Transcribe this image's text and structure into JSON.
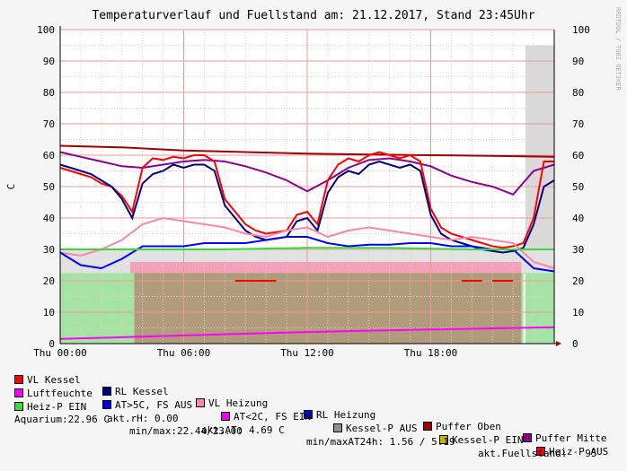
{
  "chart_data": {
    "type": "line",
    "title": "Temperaturverlauf und Fuellstand am: 21.12.2017, Stand 23:45Uhr",
    "ylabel": "C",
    "ylim": [
      0,
      100
    ],
    "y_ticks": [
      0,
      10,
      20,
      30,
      40,
      50,
      60,
      70,
      80,
      90,
      100
    ],
    "x_range_hours": [
      0,
      24
    ],
    "x_ticks": [
      {
        "h": 0,
        "label": "Thu 00:00"
      },
      {
        "h": 6,
        "label": "Thu 06:00"
      },
      {
        "h": 12,
        "label": "Thu 12:00"
      },
      {
        "h": 18,
        "label": "Thu 18:00"
      }
    ],
    "watermark": "RRDTOOL / TOBI OETIKER",
    "colors": {
      "vl_kessel": "#ff0000",
      "rl_kessel": "#000080",
      "vl_heizung": "#f788a8",
      "rl_heizung": "#0000ff",
      "puffer_oben": "#a00000",
      "puffer_mitte": "#8b008b",
      "luftfeuchte": "#ff00ff",
      "at_gt5": "#0000ff",
      "at_lt2": "#ee00ee",
      "kessel_p_aus": "#8e8e8e",
      "kessel_p_ein": "#c8b400",
      "heiz_p_aus": "#ff0000",
      "heiz_p_ein": "#33dd33",
      "fuellstand_area": "#d9d9d9",
      "heizp_area": "#a4e3a4",
      "kesselp_area": "#b09c7a"
    },
    "series": [
      {
        "name": "Puffer Oben",
        "key": "puffer_oben",
        "x": [
          0,
          3,
          6,
          9,
          12,
          15,
          18,
          21,
          24
        ],
        "values": [
          63,
          62.5,
          61.5,
          61,
          60.5,
          60.2,
          60,
          59.8,
          59.5
        ]
      },
      {
        "name": "Puffer Mitte",
        "key": "puffer_mitte",
        "x": [
          0,
          1,
          2,
          3,
          4,
          5,
          6,
          7,
          8,
          9,
          10,
          11,
          12,
          13,
          14,
          15,
          16,
          17,
          18,
          19,
          20,
          21,
          22,
          23,
          24
        ],
        "values": [
          61,
          59.5,
          58,
          56.5,
          56,
          57,
          58,
          58.5,
          58,
          56.5,
          54.5,
          52,
          48.5,
          52,
          56,
          58.5,
          59,
          58,
          56.5,
          53.5,
          51.5,
          50,
          47.5,
          55,
          57
        ]
      },
      {
        "name": "VL Kessel",
        "key": "vl_kessel",
        "x": [
          0,
          0.5,
          1,
          1.5,
          2,
          2.5,
          3,
          3.5,
          4,
          4.5,
          5,
          5.5,
          6,
          6.5,
          7,
          7.5,
          8,
          8.5,
          9,
          9.5,
          10,
          10.5,
          11,
          11.5,
          12,
          12.5,
          13,
          13.5,
          14,
          14.5,
          15,
          15.5,
          16,
          16.5,
          17,
          17.5,
          18,
          18.5,
          19,
          19.5,
          20,
          20.5,
          21,
          21.5,
          22,
          22.5,
          23,
          23.5,
          24
        ],
        "values": [
          56,
          55,
          54,
          53,
          51,
          50,
          47,
          42,
          56,
          59,
          58.5,
          59.5,
          59,
          60,
          60,
          58,
          46,
          42,
          38,
          36,
          35,
          35.5,
          36,
          41,
          42,
          38,
          52,
          57,
          59,
          58,
          60,
          61,
          60,
          59,
          60,
          58,
          43,
          37,
          35,
          34,
          33,
          32,
          31,
          30.5,
          31,
          32,
          40,
          58,
          58
        ]
      },
      {
        "name": "RL Kessel",
        "key": "rl_kessel",
        "x": [
          0,
          0.5,
          1,
          1.5,
          2,
          2.5,
          3,
          3.5,
          4,
          4.5,
          5,
          5.5,
          6,
          6.5,
          7,
          7.5,
          8,
          8.5,
          9,
          9.5,
          10,
          10.5,
          11,
          11.5,
          12,
          12.5,
          13,
          13.5,
          14,
          14.5,
          15,
          15.5,
          16,
          16.5,
          17,
          17.5,
          18,
          18.5,
          19,
          19.5,
          20,
          20.5,
          21,
          21.5,
          22,
          22.5,
          23,
          23.5,
          24
        ],
        "values": [
          57,
          56,
          55,
          54,
          52,
          50,
          46,
          40,
          51,
          54,
          55,
          57,
          56,
          57,
          57,
          55,
          44,
          40,
          36,
          34,
          33,
          33.5,
          34,
          39,
          40,
          36,
          48,
          53,
          55,
          54,
          57,
          58,
          57,
          56,
          57,
          55,
          41,
          35,
          33,
          32,
          31,
          30,
          29.5,
          29,
          29.5,
          30.5,
          38,
          50,
          52
        ]
      },
      {
        "name": "VL Heizung",
        "key": "vl_heizung",
        "x": [
          0,
          1,
          2,
          3,
          4,
          5,
          6,
          7,
          8,
          9,
          10,
          11,
          12,
          13,
          14,
          15,
          16,
          17,
          18,
          19,
          20,
          21,
          22,
          23,
          24
        ],
        "values": [
          29,
          28,
          30,
          33,
          38,
          40,
          39,
          38,
          37,
          35,
          34,
          36,
          37,
          34,
          36,
          37,
          36,
          35,
          34,
          33,
          34,
          33,
          32,
          26,
          24
        ]
      },
      {
        "name": "RL Heizung",
        "key": "rl_heizung",
        "x": [
          0,
          1,
          2,
          3,
          4,
          5,
          6,
          7,
          8,
          9,
          10,
          11,
          12,
          13,
          14,
          15,
          16,
          17,
          18,
          19,
          20,
          21,
          22,
          23,
          24
        ],
        "values": [
          29,
          25,
          24,
          27,
          31,
          31,
          31,
          32,
          32,
          32,
          33,
          34,
          34,
          32,
          31,
          31.5,
          31.5,
          32,
          32,
          31,
          31,
          30,
          30,
          24,
          23
        ]
      },
      {
        "name": "Heiz-P EIN",
        "key": "heiz_p_ein",
        "x": [
          0,
          4,
          8,
          12,
          16,
          20,
          23,
          23.5,
          24
        ],
        "values": [
          30,
          30,
          30,
          30.5,
          30.5,
          30,
          30,
          30,
          30
        ]
      },
      {
        "name": "Luftfeuchte",
        "key": "luftfeuchte",
        "x": [
          0,
          6,
          12,
          18,
          24
        ],
        "values": [
          1.5,
          2.6,
          3.7,
          4.5,
          5.2
        ]
      }
    ],
    "legend": [
      {
        "label": "VL Kessel",
        "key": "vl_kessel"
      },
      {
        "label": "RL Kessel",
        "key": "rl_kessel"
      },
      {
        "label": "VL Heizung",
        "key": "vl_heizung"
      },
      {
        "label": "RL Heizung",
        "key": "rl_heizung"
      },
      {
        "label": "Puffer Oben",
        "key": "puffer_oben"
      },
      {
        "label": "Puffer Mitte",
        "key": "puffer_mitte"
      },
      {
        "label": "Luftfeuchte",
        "key": "luftfeuchte"
      },
      {
        "label": "AT>5C, FS AUS",
        "key": "at_gt5"
      },
      {
        "label": "AT<2C, FS EIN",
        "key": "at_lt2"
      },
      {
        "label": "Kessel-P AUS",
        "key": "kessel_p_aus"
      },
      {
        "label": "Kessel-P EIN",
        "key": "kessel_p_ein"
      },
      {
        "label": "Heiz-P AUS",
        "key": "heiz_p_aus"
      },
      {
        "label": "Heiz-P EIN",
        "key": "heiz_p_ein"
      }
    ],
    "status": {
      "akt_rh": "akt.rH: 0.00",
      "akt_at": "akt.AT: 4.69 C",
      "minmax_at": "min/maxAT24h: 1.56 / 5.19",
      "akt_fuellstand": "akt.Fuellstand:   95",
      "aquarium": "Aquarium:22.96 C",
      "aquarium_minmax": "min/max:22.44/23.00"
    }
  }
}
